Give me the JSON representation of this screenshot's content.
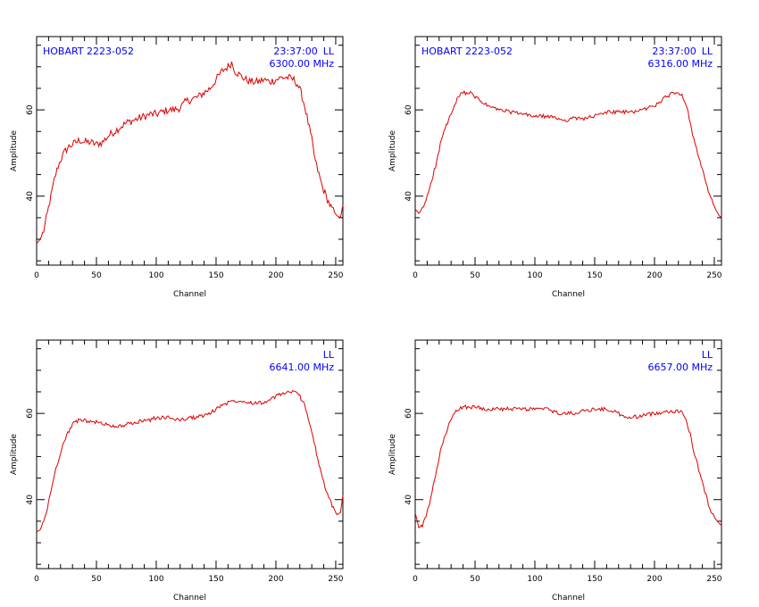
{
  "chart_data": [
    {
      "type": "line",
      "source_label": "HOBART 2223-052",
      "time_label": "23:37:00",
      "pol_label": "LL",
      "freq_label": "6300.00 MHz",
      "xlabel": "Channel",
      "ylabel": "Amplitude",
      "xlim": [
        0,
        256
      ],
      "ylim": [
        24,
        77
      ],
      "xticks": [
        0,
        50,
        100,
        150,
        200,
        250
      ],
      "yticks": [
        40,
        60
      ],
      "series": [
        {
          "color": "#dd0000",
          "x": [
            0,
            3,
            6,
            9,
            12,
            15,
            18,
            21,
            24,
            27,
            30,
            33,
            36,
            40,
            45,
            50,
            55,
            60,
            65,
            70,
            75,
            80,
            85,
            90,
            95,
            100,
            105,
            110,
            115,
            120,
            125,
            130,
            135,
            140,
            145,
            150,
            155,
            160,
            163,
            166,
            170,
            175,
            180,
            185,
            190,
            195,
            200,
            205,
            210,
            215,
            218,
            221,
            224,
            227,
            230,
            233,
            236,
            239,
            242,
            245,
            248,
            251,
            254,
            256
          ],
          "y": [
            29,
            30,
            32,
            36,
            40,
            44,
            47,
            49,
            50.5,
            51.5,
            52,
            52.5,
            53,
            52.5,
            52.5,
            52,
            52.5,
            54,
            55,
            56,
            57,
            57.5,
            58,
            58.5,
            59,
            59,
            59.5,
            60,
            60,
            60.5,
            62,
            62.5,
            63,
            64,
            65,
            67,
            69,
            70,
            71,
            69,
            68,
            67,
            66.5,
            66.5,
            67,
            66.5,
            67,
            67.5,
            67.5,
            67,
            66,
            64,
            61,
            57,
            53,
            48,
            45,
            42,
            40,
            38,
            36.5,
            35.5,
            35,
            38
          ]
        }
      ]
    },
    {
      "type": "line",
      "source_label": "HOBART 2223-052",
      "time_label": "23:37:00",
      "pol_label": "LL",
      "freq_label": "6316.00 MHz",
      "xlabel": "Channel",
      "ylabel": "Amplitude",
      "xlim": [
        0,
        256
      ],
      "ylim": [
        24,
        77
      ],
      "xticks": [
        0,
        50,
        100,
        150,
        200,
        250
      ],
      "yticks": [
        40,
        60
      ],
      "series": [
        {
          "color": "#dd0000",
          "x": [
            0,
            3,
            6,
            9,
            12,
            15,
            18,
            21,
            24,
            27,
            30,
            33,
            36,
            40,
            45,
            50,
            55,
            60,
            65,
            70,
            80,
            90,
            100,
            110,
            120,
            125,
            130,
            140,
            150,
            160,
            170,
            180,
            190,
            200,
            205,
            210,
            215,
            220,
            224,
            227,
            230,
            233,
            236,
            239,
            242,
            245,
            248,
            251,
            254,
            256
          ],
          "y": [
            37,
            36,
            37,
            39,
            42,
            45,
            48,
            52,
            55,
            57,
            59,
            61,
            63,
            64,
            64,
            63,
            62,
            61,
            60.5,
            60,
            59.5,
            59,
            58.5,
            58.5,
            58,
            57.5,
            58,
            58,
            58.5,
            59.5,
            59.5,
            59.5,
            60,
            61,
            62,
            63,
            64,
            64,
            63,
            61,
            57,
            53,
            50,
            47,
            44,
            41,
            39,
            37,
            35.5,
            35
          ]
        }
      ]
    },
    {
      "type": "line",
      "source_label": "",
      "time_label": "",
      "pol_label": "LL",
      "freq_label": "6641.00 MHz",
      "xlabel": "Channel",
      "ylabel": "Amplitude",
      "xlim": [
        0,
        256
      ],
      "ylim": [
        24,
        77
      ],
      "xticks": [
        0,
        50,
        100,
        150,
        200,
        250
      ],
      "yticks": [
        40,
        60
      ],
      "series": [
        {
          "color": "#dd0000",
          "x": [
            0,
            3,
            6,
            9,
            12,
            15,
            18,
            21,
            24,
            27,
            30,
            33,
            36,
            40,
            45,
            50,
            55,
            60,
            65,
            70,
            75,
            80,
            85,
            90,
            95,
            100,
            110,
            120,
            130,
            140,
            145,
            150,
            155,
            160,
            165,
            170,
            180,
            190,
            195,
            200,
            205,
            210,
            215,
            220,
            224,
            227,
            230,
            233,
            236,
            239,
            242,
            245,
            248,
            251,
            254,
            256
          ],
          "y": [
            32.5,
            33,
            35,
            38,
            42,
            46,
            49,
            52,
            54,
            56,
            57.5,
            58,
            58.5,
            58.5,
            58,
            58,
            57.5,
            57.5,
            57,
            57,
            57.5,
            57.5,
            58,
            58.5,
            58.5,
            59,
            59,
            58.5,
            59,
            59.5,
            60,
            61,
            62,
            62.5,
            63,
            63,
            62.5,
            62.5,
            63,
            64,
            64.5,
            65,
            65,
            64,
            62,
            59,
            56,
            52,
            48,
            45,
            42,
            40,
            38,
            36.5,
            37,
            41
          ]
        }
      ]
    },
    {
      "type": "line",
      "source_label": "",
      "time_label": "",
      "pol_label": "LL",
      "freq_label": "6657.00 MHz",
      "xlabel": "Channel",
      "ylabel": "Amplitude",
      "xlim": [
        0,
        256
      ],
      "ylim": [
        24,
        77
      ],
      "xticks": [
        0,
        50,
        100,
        150,
        200,
        250
      ],
      "yticks": [
        40,
        60
      ],
      "series": [
        {
          "color": "#dd0000",
          "x": [
            0,
            3,
            6,
            9,
            12,
            15,
            18,
            21,
            24,
            27,
            30,
            33,
            36,
            40,
            45,
            50,
            60,
            70,
            80,
            90,
            100,
            110,
            120,
            130,
            140,
            150,
            160,
            170,
            175,
            180,
            190,
            200,
            210,
            220,
            224,
            227,
            230,
            233,
            236,
            239,
            242,
            245,
            248,
            251,
            254,
            256
          ],
          "y": [
            37,
            33.5,
            34,
            36,
            39,
            43,
            47,
            51,
            54,
            56.5,
            58.5,
            60,
            61,
            61.5,
            61.5,
            61.5,
            61,
            61,
            61,
            61,
            61,
            61,
            60,
            60,
            60.5,
            61,
            61,
            60,
            59,
            59,
            59.5,
            60,
            60.5,
            60.5,
            60,
            58,
            55,
            51,
            48,
            45,
            42,
            39,
            37,
            35.5,
            34.5,
            34
          ]
        }
      ]
    }
  ]
}
